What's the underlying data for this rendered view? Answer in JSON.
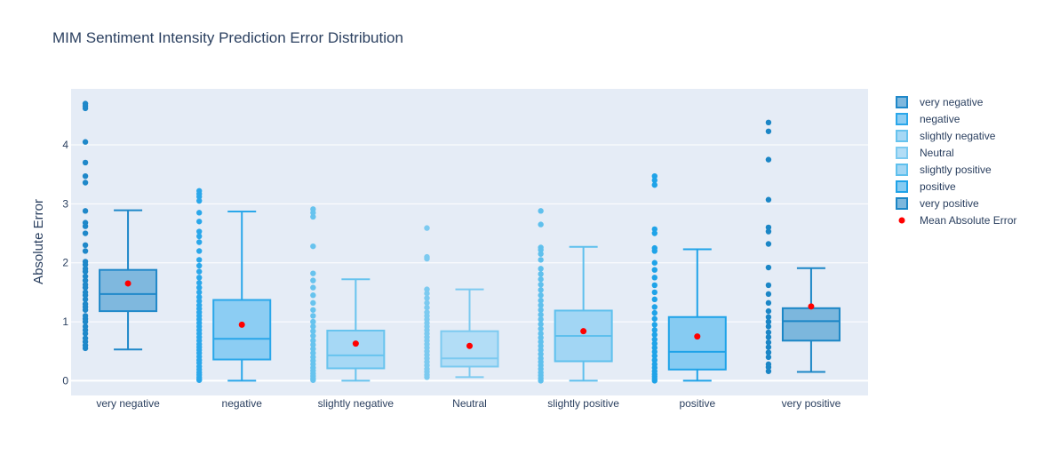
{
  "chart_data": {
    "type": "box",
    "title": "MIM Sentiment Intensity Prediction Error Distribution",
    "xlabel": "",
    "ylabel": "Absolute Error",
    "ylim": [
      -0.25,
      4.95
    ],
    "yticks": [
      0,
      1,
      2,
      3,
      4
    ],
    "grid": true,
    "legend_position": "right",
    "categories": [
      "very negative",
      "negative",
      "slightly negative",
      "Neutral",
      "slightly positive",
      "positive",
      "very positive"
    ],
    "series": [
      {
        "name": "very negative",
        "line_color": "#1f88c9",
        "fill_color": "#7fb8de",
        "q1": 1.18,
        "median": 1.47,
        "q3": 1.88,
        "lowerfence": 0.53,
        "upperfence": 2.89,
        "mean": 1.65,
        "outliers": [
          0.55,
          0.6,
          0.66,
          0.72,
          0.8,
          0.86,
          0.92,
          1.0,
          1.05,
          1.1,
          1.2,
          1.25,
          1.3,
          1.38,
          1.45,
          1.5,
          1.58,
          1.63,
          1.7,
          1.77,
          1.85,
          1.9,
          1.97,
          2.02,
          2.2,
          2.3,
          2.5,
          2.62,
          2.68,
          2.88,
          3.36,
          3.47,
          3.7,
          4.05,
          4.62,
          4.66,
          4.7
        ]
      },
      {
        "name": "negative",
        "line_color": "#2aa7ea",
        "fill_color": "#8ccdf3",
        "q1": 0.36,
        "median": 0.71,
        "q3": 1.37,
        "lowerfence": 0.0,
        "upperfence": 2.87,
        "mean": 0.95,
        "outliers": [
          0.01,
          0.03,
          0.06,
          0.1,
          0.14,
          0.19,
          0.24,
          0.3,
          0.35,
          0.41,
          0.47,
          0.52,
          0.57,
          0.62,
          0.68,
          0.74,
          0.8,
          0.86,
          0.92,
          0.98,
          1.04,
          1.1,
          1.16,
          1.22,
          1.28,
          1.35,
          1.42,
          1.5,
          1.58,
          1.66,
          1.75,
          1.85,
          1.95,
          2.05,
          2.2,
          2.35,
          2.45,
          2.53,
          2.7,
          2.85,
          3.05,
          3.12,
          3.17,
          3.22
        ]
      },
      {
        "name": "slightly negative",
        "line_color": "#67c3ee",
        "fill_color": "#a6d8f5",
        "q1": 0.21,
        "median": 0.43,
        "q3": 0.85,
        "lowerfence": 0.0,
        "upperfence": 1.72,
        "mean": 0.63,
        "outliers": [
          0.01,
          0.04,
          0.08,
          0.12,
          0.17,
          0.22,
          0.28,
          0.34,
          0.4,
          0.47,
          0.54,
          0.61,
          0.68,
          0.76,
          0.84,
          0.92,
          1.0,
          1.1,
          1.2,
          1.32,
          1.45,
          1.58,
          1.7,
          1.82,
          2.28,
          2.78,
          2.85,
          2.91
        ]
      },
      {
        "name": "Neutral",
        "line_color": "#7ccaf0",
        "fill_color": "#b2ddf6",
        "q1": 0.24,
        "median": 0.38,
        "q3": 0.84,
        "lowerfence": 0.06,
        "upperfence": 1.55,
        "mean": 0.59,
        "outliers": [
          0.06,
          0.1,
          0.15,
          0.2,
          0.26,
          0.32,
          0.38,
          0.44,
          0.5,
          0.56,
          0.62,
          0.68,
          0.74,
          0.8,
          0.86,
          0.92,
          0.98,
          1.04,
          1.1,
          1.16,
          1.24,
          1.32,
          1.4,
          1.48,
          1.55,
          2.07,
          2.1,
          2.59
        ]
      },
      {
        "name": "slightly positive",
        "line_color": "#5fc0ed",
        "fill_color": "#a2d6f4",
        "q1": 0.33,
        "median": 0.76,
        "q3": 1.19,
        "lowerfence": 0.0,
        "upperfence": 2.27,
        "mean": 0.84,
        "outliers": [
          0.0,
          0.04,
          0.09,
          0.14,
          0.2,
          0.26,
          0.32,
          0.38,
          0.45,
          0.52,
          0.59,
          0.66,
          0.73,
          0.8,
          0.88,
          0.96,
          1.04,
          1.12,
          1.2,
          1.28,
          1.36,
          1.45,
          1.54,
          1.63,
          1.72,
          1.81,
          1.9,
          2.05,
          2.15,
          2.22,
          2.26,
          2.65,
          2.88
        ]
      },
      {
        "name": "positive",
        "line_color": "#1fa3e8",
        "fill_color": "#86cbf2",
        "q1": 0.19,
        "median": 0.49,
        "q3": 1.08,
        "lowerfence": 0.0,
        "upperfence": 2.23,
        "mean": 0.75,
        "outliers": [
          0.0,
          0.03,
          0.07,
          0.11,
          0.16,
          0.22,
          0.28,
          0.35,
          0.42,
          0.49,
          0.56,
          0.63,
          0.7,
          0.78,
          0.86,
          0.95,
          1.05,
          1.15,
          1.25,
          1.38,
          1.5,
          1.62,
          1.75,
          1.88,
          2.0,
          2.2,
          2.25,
          2.5,
          2.57,
          3.32,
          3.4,
          3.47
        ]
      },
      {
        "name": "very positive",
        "line_color": "#1b86c6",
        "fill_color": "#7cb7dd",
        "q1": 0.68,
        "median": 1.01,
        "q3": 1.23,
        "lowerfence": 0.15,
        "upperfence": 1.91,
        "mean": 1.26,
        "outliers": [
          0.16,
          0.23,
          0.28,
          0.4,
          0.48,
          0.57,
          0.65,
          0.74,
          0.82,
          0.92,
          1.0,
          1.08,
          1.18,
          1.32,
          1.47,
          1.62,
          1.92,
          2.32,
          2.53,
          2.6,
          3.07,
          3.75,
          4.23,
          4.38
        ]
      }
    ],
    "mean_trace": {
      "name": "Mean Absolute Error",
      "color": "#ff0000"
    }
  }
}
